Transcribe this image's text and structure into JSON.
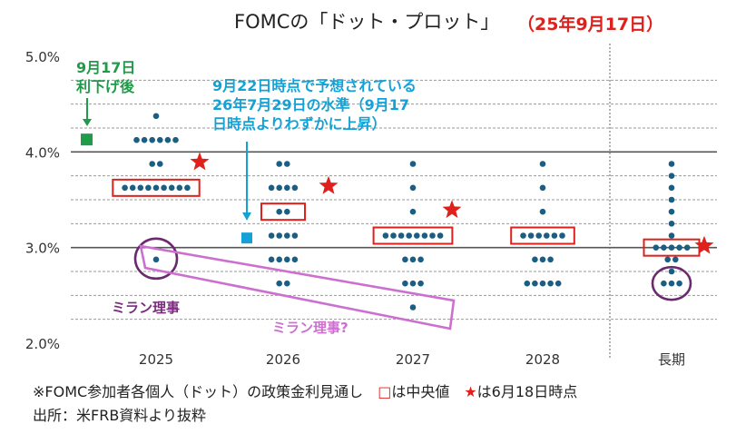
{
  "header": {
    "title": "FOMCの「ドット・プロット」",
    "subtitle": "（25年9月17日）"
  },
  "footer": {
    "note_main": "※FOMC参加者各個人（ドット）の政策金利見通し　",
    "note_square": "□",
    "note_median": "は中央値　",
    "note_star": "★",
    "note_june": "は6月18日時点",
    "source": "出所：米FRB資料より抜粋"
  },
  "annotations": {
    "post_cut_line1": "9月17日",
    "post_cut_line2": "利下げ後",
    "market_line1": "9月22日時点で予想されている",
    "market_line2": "26年7月29日の水準（9月17",
    "market_line3": "日時点よりわずかに上昇）",
    "miran": "ミラン理事",
    "miran_q": "ミラン理事?"
  },
  "colors": {
    "dot": "#1b5e83",
    "median_box": "#e0201b",
    "star": "#e0201b",
    "post_cut_marker": "#1f9b4a",
    "market_marker": "#14a2d6",
    "miran_circle": "#6b2a6e",
    "miran_q_box": "#cc6fcf"
  },
  "chart_data": {
    "type": "scatter",
    "ylim": [
      2.0,
      5.0
    ],
    "yticks": [
      {
        "value": 5.0,
        "label": "5.0%"
      },
      {
        "value": 4.0,
        "label": "4.0%"
      },
      {
        "value": 3.0,
        "label": "3.0%"
      },
      {
        "value": 2.0,
        "label": "2.0%"
      }
    ],
    "categories": [
      "2025",
      "2026",
      "2027",
      "2028",
      "長期"
    ],
    "dots": [
      {
        "category": "2025",
        "rates": [
          [
            4.375,
            1
          ],
          [
            4.125,
            6
          ],
          [
            3.875,
            2
          ],
          [
            3.625,
            9
          ],
          [
            2.875,
            1
          ]
        ]
      },
      {
        "category": "2026",
        "rates": [
          [
            3.875,
            2
          ],
          [
            3.625,
            4
          ],
          [
            3.375,
            2
          ],
          [
            3.125,
            4
          ],
          [
            2.875,
            3
          ],
          [
            2.625,
            2
          ],
          [
            2.875,
            1
          ]
        ]
      },
      {
        "category": "2027",
        "rates": [
          [
            3.875,
            1
          ],
          [
            3.625,
            1
          ],
          [
            3.375,
            1
          ],
          [
            3.125,
            8
          ],
          [
            2.875,
            3
          ],
          [
            2.625,
            3
          ],
          [
            2.375,
            1
          ]
        ]
      },
      {
        "category": "2028",
        "rates": [
          [
            3.875,
            1
          ],
          [
            3.625,
            1
          ],
          [
            3.375,
            1
          ],
          [
            3.125,
            6
          ],
          [
            2.875,
            3
          ],
          [
            2.625,
            4
          ],
          [
            2.625,
            1
          ]
        ]
      },
      {
        "category": "長期",
        "rates": [
          [
            3.875,
            1
          ],
          [
            3.75,
            1
          ],
          [
            3.625,
            1
          ],
          [
            3.5,
            1
          ],
          [
            3.375,
            1
          ],
          [
            3.25,
            1
          ],
          [
            3.125,
            1
          ],
          [
            3.0,
            5
          ],
          [
            2.875,
            2
          ],
          [
            2.75,
            1
          ],
          [
            2.625,
            3
          ]
        ]
      }
    ],
    "medians": [
      {
        "category": "2025",
        "value": 3.625
      },
      {
        "category": "2026",
        "value": 3.375
      },
      {
        "category": "2027",
        "value": 3.125
      },
      {
        "category": "2028",
        "value": 3.125
      },
      {
        "category": "長期",
        "value": 3.0
      }
    ],
    "june_medians": [
      {
        "category": "2025",
        "value": 3.875
      },
      {
        "category": "2026",
        "value": 3.625
      },
      {
        "category": "2027",
        "value": 3.375
      },
      {
        "category": "長期",
        "value": 3.0
      }
    ],
    "post_cut_rate": 4.125,
    "market_expected_2026_07": 3.1
  }
}
